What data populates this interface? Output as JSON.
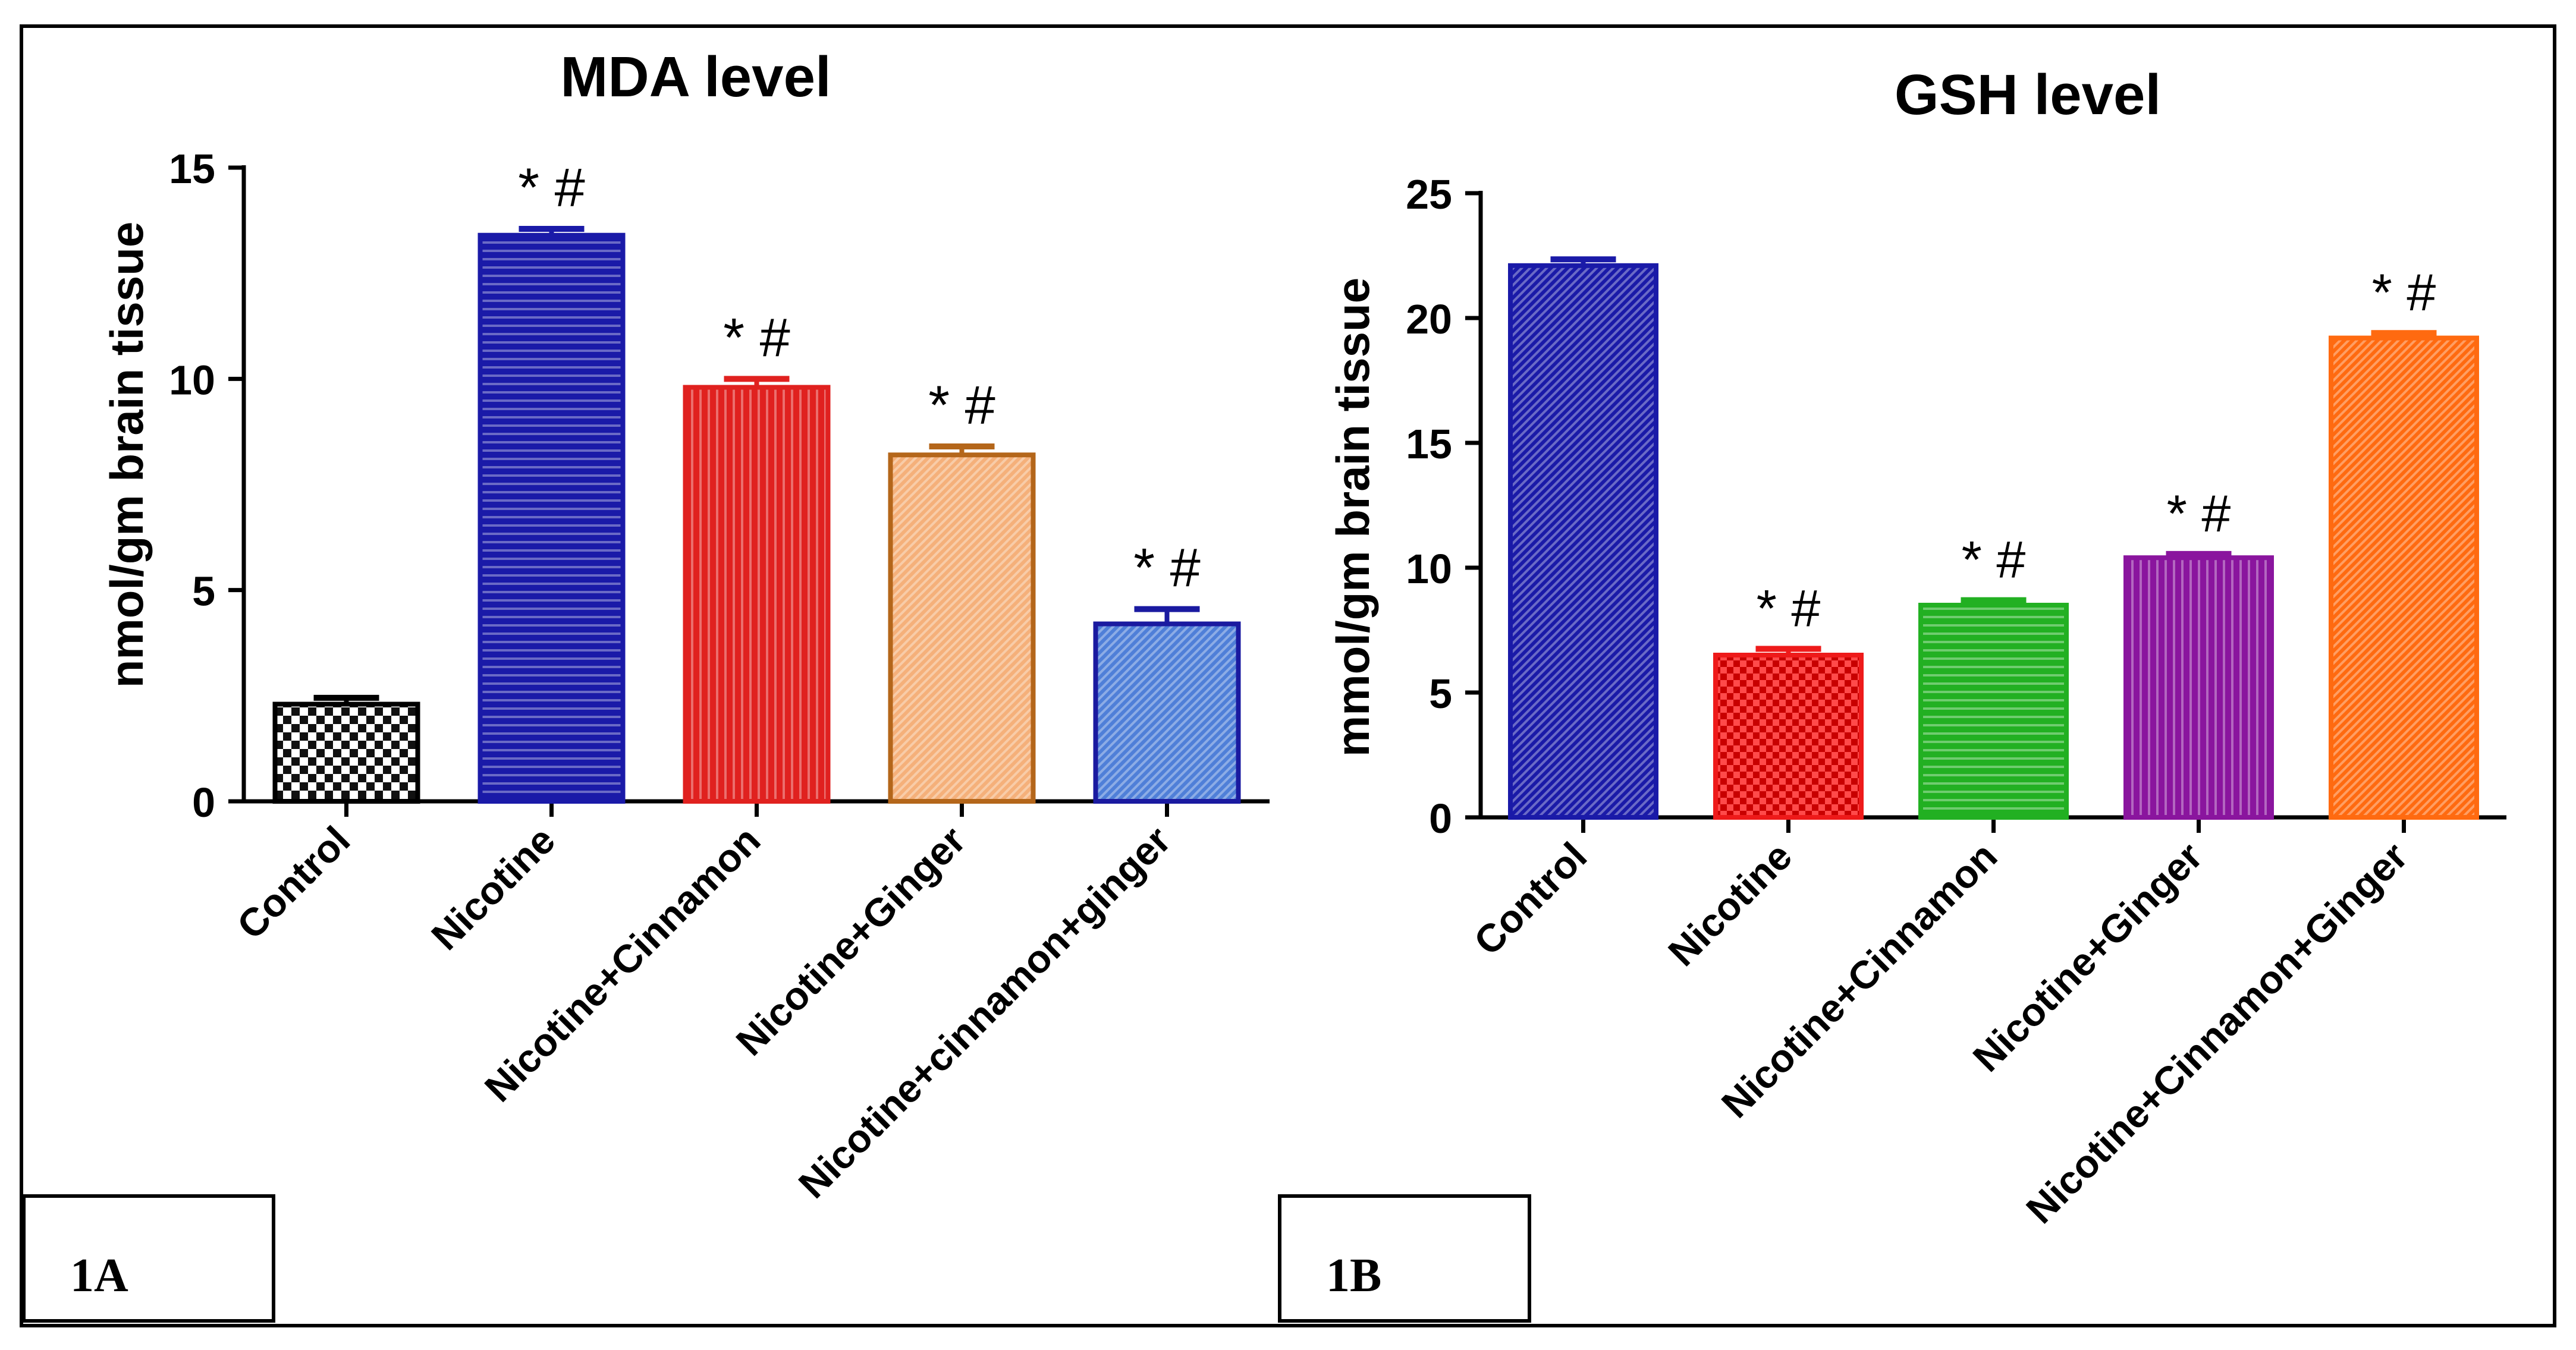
{
  "figure": {
    "panel_labels": [
      "1A",
      "1B"
    ]
  },
  "chart_data": [
    {
      "type": "bar",
      "title": "MDA level",
      "xlabel": "",
      "ylabel": "nmol/gm brain tissue",
      "ylim": [
        0,
        15
      ],
      "yticks": [
        0,
        5,
        10,
        15
      ],
      "categories": [
        "Control",
        "Nicotine",
        "Nicotine+Cinnamon",
        "Nicotine+Ginger",
        "Nicotine+cinnamon+ginger"
      ],
      "values": [
        2.3,
        13.4,
        9.8,
        8.2,
        4.2
      ],
      "errors": [
        0.15,
        0.15,
        0.2,
        0.2,
        0.35
      ],
      "significance": [
        "",
        "* #",
        "* #",
        "* #",
        "* #"
      ],
      "colors": [
        "#111111",
        "#1a1aa8",
        "#e0211f",
        "#f5b07a",
        "#4f7fd8"
      ],
      "patterns": [
        "checker",
        "hlines",
        "vlines",
        "diag",
        "diag"
      ],
      "grid": false
    },
    {
      "type": "bar",
      "title": "GSH level",
      "xlabel": "",
      "ylabel": "mmol/gm brain tissue",
      "ylim": [
        0,
        25
      ],
      "yticks": [
        0,
        5,
        10,
        15,
        20,
        25
      ],
      "categories": [
        "Control",
        "Nicotine",
        "Nicotine+Cinnamon",
        "Nicotine+Ginger",
        "Nicotine+Cinnamon+Ginger"
      ],
      "values": [
        22.1,
        6.5,
        8.5,
        10.4,
        19.2
      ],
      "errors": [
        0.25,
        0.25,
        0.2,
        0.15,
        0.2
      ],
      "significance": [
        "",
        "* #",
        "* #",
        "* #",
        "* #"
      ],
      "colors": [
        "#1a1aa8",
        "#ee1a1a",
        "#22b022",
        "#8a159e",
        "#ff6a10"
      ],
      "patterns": [
        "diag",
        "checker",
        "hlines",
        "vlines",
        "diag"
      ],
      "grid": false
    }
  ]
}
